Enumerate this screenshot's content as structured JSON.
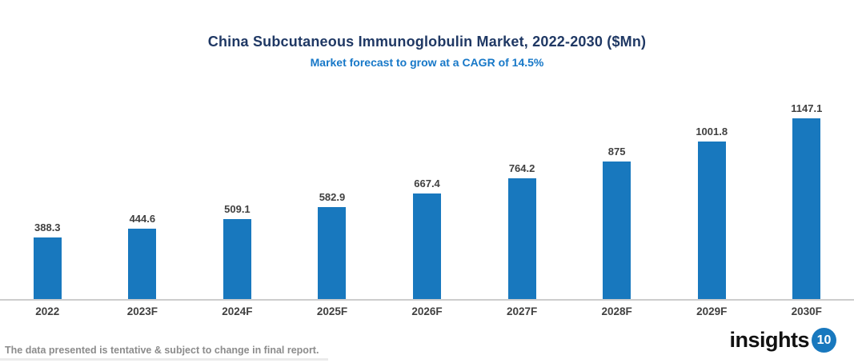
{
  "header": {
    "title": "China Subcutaneous Immunoglobulin Market, 2022-2030 ($Mn)",
    "subtitle": "Market forecast to grow at a CAGR of 14.5%",
    "title_color": "#1F3864",
    "subtitle_color": "#1778C8"
  },
  "chart_data": {
    "type": "bar",
    "title": "China Subcutaneous Immunoglobulin Market, 2022-2030 ($Mn)",
    "subtitle": "Market forecast to grow at a CAGR of 14.5%",
    "categories": [
      "2022",
      "2023F",
      "2024F",
      "2025F",
      "2026F",
      "2027F",
      "2028F",
      "2029F",
      "2030F"
    ],
    "values": [
      388.3,
      444.6,
      509.1,
      582.9,
      667.4,
      764.2,
      875,
      1001.8,
      1147.1
    ],
    "value_labels": [
      "388.3",
      "444.6",
      "509.1",
      "582.9",
      "667.4",
      "764.2",
      "875",
      "1001.8",
      "1147.1"
    ],
    "xlabel": "",
    "ylabel": "",
    "ylim": [
      0,
      1390
    ],
    "grid": false,
    "legend": false,
    "bar_color": "#1878BE",
    "value_label_color": "#404040",
    "axis_label_color": "#404040",
    "axis_line_color": "#CDCDCD"
  },
  "footer": {
    "disclaimer": "The data presented is tentative & subject to change in final report.",
    "disclaimer_color": "#8C8C8C",
    "logo": {
      "text": "insights",
      "badge": "10",
      "text_color": "#111111",
      "badge_bg": "#1878BE",
      "badge_text_color": "#FFFFFF"
    }
  }
}
